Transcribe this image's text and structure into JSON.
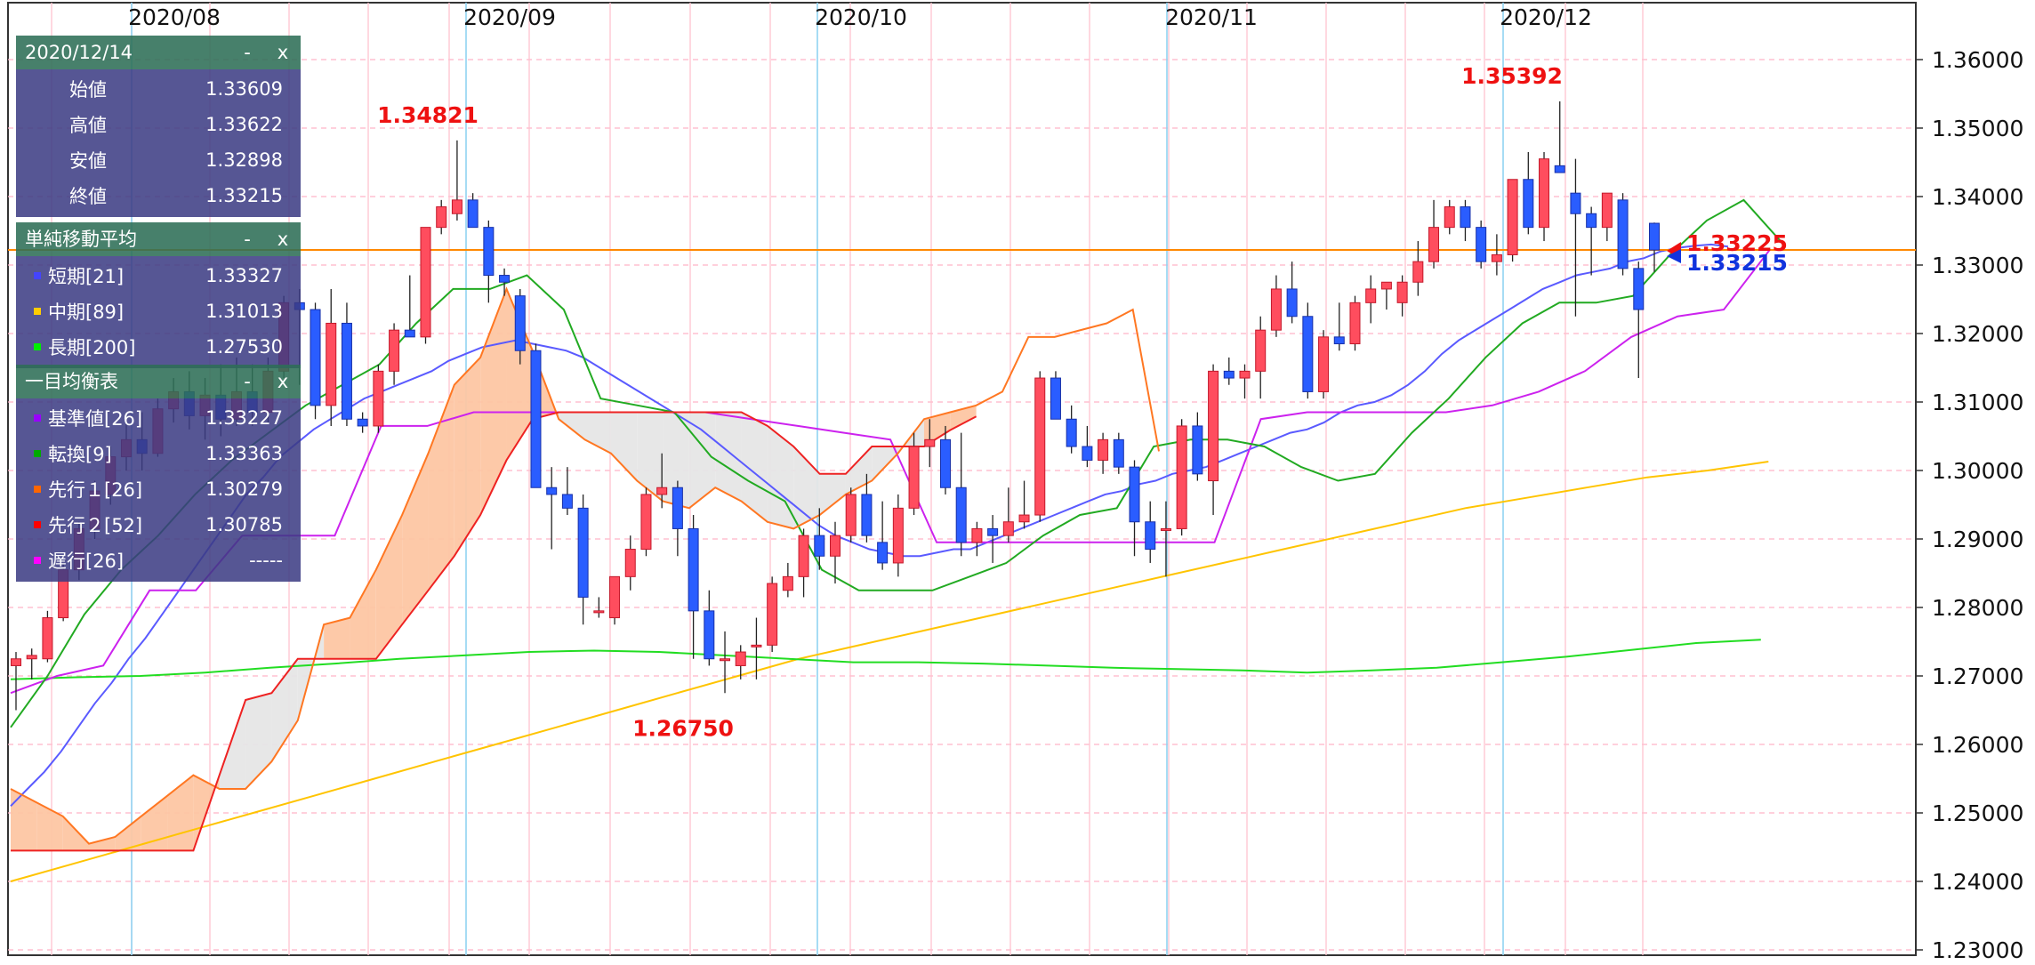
{
  "ohlc_panel": {
    "date": "2020/12/14",
    "minimize": "-",
    "close": "x",
    "rows": [
      {
        "label": "始値",
        "value": "1.33609"
      },
      {
        "label": "高値",
        "value": "1.33622"
      },
      {
        "label": "安値",
        "value": "1.32898"
      },
      {
        "label": "終値",
        "value": "1.33215"
      }
    ]
  },
  "sma_panel": {
    "title": "単純移動平均",
    "minimize": "-",
    "close": "x",
    "rows": [
      {
        "label": "短期[21]",
        "value": "1.33327",
        "color": "#4444ff"
      },
      {
        "label": "中期[89]",
        "value": "1.31013",
        "color": "#ffcc00"
      },
      {
        "label": "長期[200]",
        "value": "1.27530",
        "color": "#00ee00"
      }
    ]
  },
  "ichimoku_panel": {
    "title": "一目均衡表",
    "minimize": "-",
    "close": "x",
    "rows": [
      {
        "label": "基準値[26]",
        "value": "1.33227",
        "color": "#9900ff"
      },
      {
        "label": "転換[9]",
        "value": "1.33363",
        "color": "#00aa00"
      },
      {
        "label": "先行１[26]",
        "value": "1.30279",
        "color": "#ff6600"
      },
      {
        "label": "先行２[52]",
        "value": "1.30785",
        "color": "#ff0000"
      },
      {
        "label": "遅行[26]",
        "value": "-----",
        "color": "#ff00ff"
      }
    ]
  },
  "chart_data": {
    "type": "candlestick",
    "instrument_price_scale": {
      "ylim": [
        1.23,
        1.365
      ]
    },
    "y_ticks": [
      "1.23000",
      "1.24000",
      "1.25000",
      "1.26000",
      "1.27000",
      "1.28000",
      "1.29000",
      "1.30000",
      "1.31000",
      "1.32000",
      "1.33000",
      "1.34000",
      "1.35000",
      "1.36000"
    ],
    "month_labels": [
      "2020/08",
      "2020/09",
      "2020/10",
      "2020/11",
      "2020/12"
    ],
    "annotations": [
      {
        "text": "1.34821",
        "value": 1.34821
      },
      {
        "text": "1.35392",
        "value": 1.35392
      },
      {
        "text": "1.26750",
        "value": 1.2675
      }
    ],
    "current_price_labels": [
      {
        "text": "1.33225",
        "value": 1.33225,
        "color": "#ee1111"
      },
      {
        "text": "1.33215",
        "value": 1.33215,
        "color": "#1133dd"
      }
    ],
    "horizontal_line": {
      "value": 1.3322,
      "color": "#ff8800"
    },
    "candles": [
      [
        1.2715,
        1.2735,
        1.265,
        1.2725
      ],
      [
        1.2725,
        1.274,
        1.2695,
        1.273
      ],
      [
        1.2725,
        1.2795,
        1.272,
        1.2785
      ],
      [
        1.2785,
        1.2865,
        1.278,
        1.2855
      ],
      [
        1.2855,
        1.2925,
        1.284,
        1.2915
      ],
      [
        1.2915,
        1.2985,
        1.29,
        1.297
      ],
      [
        1.2965,
        1.3035,
        1.295,
        1.302
      ],
      [
        1.302,
        1.3075,
        1.3,
        1.3045
      ],
      [
        1.3045,
        1.3085,
        1.3,
        1.3025
      ],
      [
        1.3025,
        1.3105,
        1.302,
        1.309
      ],
      [
        1.309,
        1.3135,
        1.307,
        1.3115
      ],
      [
        1.3115,
        1.3145,
        1.306,
        1.308
      ],
      [
        1.308,
        1.3135,
        1.3045,
        1.311
      ],
      [
        1.311,
        1.3155,
        1.305,
        1.3075
      ],
      [
        1.3075,
        1.3165,
        1.3065,
        1.3115
      ],
      [
        1.3115,
        1.3155,
        1.3065,
        1.3085
      ],
      [
        1.3085,
        1.3165,
        1.307,
        1.3145
      ],
      [
        1.3145,
        1.3255,
        1.3135,
        1.3245
      ],
      [
        1.3245,
        1.3265,
        1.3125,
        1.3235
      ],
      [
        1.3235,
        1.3245,
        1.3075,
        1.3095
      ],
      [
        1.3095,
        1.3265,
        1.3065,
        1.3215
      ],
      [
        1.3215,
        1.3245,
        1.3065,
        1.3075
      ],
      [
        1.3075,
        1.3085,
        1.3055,
        1.3065
      ],
      [
        1.3065,
        1.3155,
        1.3055,
        1.3145
      ],
      [
        1.3145,
        1.3215,
        1.3125,
        1.3205
      ],
      [
        1.3205,
        1.3285,
        1.3195,
        1.3195
      ],
      [
        1.3195,
        1.3355,
        1.3185,
        1.3355
      ],
      [
        1.3355,
        1.3395,
        1.3345,
        1.3385
      ],
      [
        1.3375,
        1.3482,
        1.3365,
        1.3395
      ],
      [
        1.3395,
        1.3405,
        1.3355,
        1.3355
      ],
      [
        1.3355,
        1.3365,
        1.3245,
        1.3285
      ],
      [
        1.3285,
        1.3295,
        1.3255,
        1.3275
      ],
      [
        1.3255,
        1.3265,
        1.3155,
        1.3175
      ],
      [
        1.3175,
        1.3185,
        1.2975,
        1.2975
      ],
      [
        1.2975,
        1.3005,
        1.2885,
        1.2965
      ],
      [
        1.2965,
        1.3005,
        1.2935,
        1.2945
      ],
      [
        1.2945,
        1.2965,
        1.2775,
        1.2815
      ],
      [
        1.2795,
        1.2815,
        1.2785,
        1.2795
      ],
      [
        1.2785,
        1.2845,
        1.2775,
        1.2845
      ],
      [
        1.2845,
        1.2905,
        1.2825,
        1.2885
      ],
      [
        1.2885,
        1.2975,
        1.2875,
        1.2965
      ],
      [
        1.2965,
        1.3025,
        1.2945,
        1.2975
      ],
      [
        1.2975,
        1.2985,
        1.2875,
        1.2915
      ],
      [
        1.2915,
        1.2935,
        1.2725,
        1.2795
      ],
      [
        1.2795,
        1.2825,
        1.2715,
        1.2725
      ],
      [
        1.2725,
        1.2765,
        1.2675,
        1.2725
      ],
      [
        1.2715,
        1.2745,
        1.2695,
        1.2735
      ],
      [
        1.2745,
        1.2785,
        1.2695,
        1.2745
      ],
      [
        1.2745,
        1.2845,
        1.2735,
        1.2835
      ],
      [
        1.2825,
        1.2865,
        1.2815,
        1.2845
      ],
      [
        1.2845,
        1.2915,
        1.2815,
        1.2905
      ],
      [
        1.2905,
        1.2945,
        1.2855,
        1.2875
      ],
      [
        1.2875,
        1.2925,
        1.2835,
        1.2905
      ],
      [
        1.2905,
        1.2975,
        1.2895,
        1.2965
      ],
      [
        1.2965,
        1.2995,
        1.2895,
        1.2905
      ],
      [
        1.2895,
        1.2955,
        1.2855,
        1.2865
      ],
      [
        1.2865,
        1.2965,
        1.2845,
        1.2945
      ],
      [
        1.2945,
        1.3055,
        1.2935,
        1.3035
      ],
      [
        1.3035,
        1.3075,
        1.3005,
        1.3045
      ],
      [
        1.3045,
        1.3065,
        1.2965,
        1.2975
      ],
      [
        1.2975,
        1.3055,
        1.2875,
        1.2895
      ],
      [
        1.2895,
        1.2925,
        1.2875,
        1.2915
      ],
      [
        1.2915,
        1.2935,
        1.2865,
        1.2905
      ],
      [
        1.2905,
        1.2975,
        1.2895,
        1.2925
      ],
      [
        1.2925,
        1.2985,
        1.2915,
        1.2935
      ],
      [
        1.2935,
        1.3145,
        1.2925,
        1.3135
      ],
      [
        1.3135,
        1.3145,
        1.3075,
        1.3075
      ],
      [
        1.3075,
        1.3095,
        1.3025,
        1.3035
      ],
      [
        1.3035,
        1.3065,
        1.3005,
        1.3015
      ],
      [
        1.3015,
        1.3055,
        1.2995,
        1.3045
      ],
      [
        1.3045,
        1.3055,
        1.2995,
        1.3005
      ],
      [
        1.3005,
        1.3015,
        1.2875,
        1.2925
      ],
      [
        1.2925,
        1.2955,
        1.2865,
        1.2885
      ],
      [
        1.2915,
        1.2955,
        1.2845,
        1.2915
      ],
      [
        1.2915,
        1.3075,
        1.2905,
        1.3065
      ],
      [
        1.3065,
        1.3085,
        1.2985,
        1.2995
      ],
      [
        1.2985,
        1.3155,
        1.2935,
        1.3145
      ],
      [
        1.3145,
        1.3165,
        1.3125,
        1.3135
      ],
      [
        1.3135,
        1.3155,
        1.3105,
        1.3145
      ],
      [
        1.3145,
        1.3225,
        1.3105,
        1.3205
      ],
      [
        1.3205,
        1.3285,
        1.3195,
        1.3265
      ],
      [
        1.3265,
        1.3305,
        1.3215,
        1.3225
      ],
      [
        1.3225,
        1.3245,
        1.3105,
        1.3115
      ],
      [
        1.3115,
        1.3205,
        1.3105,
        1.3195
      ],
      [
        1.3195,
        1.3245,
        1.3175,
        1.3185
      ],
      [
        1.3185,
        1.3255,
        1.3175,
        1.3245
      ],
      [
        1.3245,
        1.3285,
        1.3215,
        1.3265
      ],
      [
        1.3265,
        1.3275,
        1.3235,
        1.3275
      ],
      [
        1.3245,
        1.3285,
        1.3225,
        1.3275
      ],
      [
        1.3275,
        1.3335,
        1.3255,
        1.3305
      ],
      [
        1.3305,
        1.3395,
        1.3295,
        1.3355
      ],
      [
        1.3355,
        1.3395,
        1.3345,
        1.3385
      ],
      [
        1.3385,
        1.3395,
        1.3335,
        1.3355
      ],
      [
        1.3355,
        1.3365,
        1.3295,
        1.3305
      ],
      [
        1.3305,
        1.3345,
        1.3285,
        1.3315
      ],
      [
        1.3315,
        1.3425,
        1.3305,
        1.3425
      ],
      [
        1.3425,
        1.3465,
        1.3345,
        1.3355
      ],
      [
        1.3355,
        1.3465,
        1.3335,
        1.3455
      ],
      [
        1.3445,
        1.3539,
        1.3435,
        1.3435
      ],
      [
        1.3405,
        1.3455,
        1.3225,
        1.3375
      ],
      [
        1.3375,
        1.3385,
        1.3285,
        1.3355
      ],
      [
        1.3355,
        1.3405,
        1.3335,
        1.3405
      ],
      [
        1.3395,
        1.3405,
        1.3285,
        1.3295
      ],
      [
        1.3295,
        1.3305,
        1.3135,
        1.3235
      ],
      [
        1.3361,
        1.3362,
        1.329,
        1.3322
      ]
    ],
    "series": [
      {
        "name": "短期[21]",
        "color": "#5a5aff",
        "values": [
          1.251,
          1.2535,
          1.256,
          1.259,
          1.2625,
          1.266,
          1.269,
          1.2725,
          1.2755,
          1.279,
          1.2825,
          1.286,
          1.2895,
          1.293,
          1.2965,
          1.299,
          1.302,
          1.304,
          1.306,
          1.3075,
          1.309,
          1.3105,
          1.3115,
          1.3125,
          1.3135,
          1.3145,
          1.316,
          1.317,
          1.318,
          1.3185,
          1.319,
          1.3185,
          1.318,
          1.3175,
          1.3165,
          1.315,
          1.3135,
          1.312,
          1.3105,
          1.309,
          1.3075,
          1.306,
          1.304,
          1.302,
          1.3,
          1.298,
          1.296,
          1.294,
          1.292,
          1.2905,
          1.2895,
          1.2885,
          1.288,
          1.2875,
          1.2875,
          1.288,
          1.2885,
          1.2885,
          1.2895,
          1.2905,
          1.2915,
          1.2925,
          1.2935,
          1.2945,
          1.2955,
          1.2965,
          1.297,
          1.298,
          1.2985,
          1.2995,
          1.3,
          1.3005,
          1.3015,
          1.3025,
          1.3035,
          1.3045,
          1.3055,
          1.306,
          1.307,
          1.3085,
          1.3095,
          1.31,
          1.311,
          1.3125,
          1.3145,
          1.317,
          1.319,
          1.3205,
          1.322,
          1.3235,
          1.325,
          1.3265,
          1.3275,
          1.3285,
          1.329,
          1.3295,
          1.3305,
          1.331,
          1.332,
          1.3325,
          1.3328,
          1.333,
          1.3327
        ]
      },
      {
        "name": "中期[89]",
        "color": "#ffc400",
        "values": [
          1.24,
          1.2425,
          1.245,
          1.2475,
          1.25,
          1.2525,
          1.255,
          1.2575,
          1.26,
          1.2625,
          1.265,
          1.2675,
          1.27,
          1.2725,
          1.2745,
          1.2765,
          1.2785,
          1.2805,
          1.2825,
          1.2845,
          1.2865,
          1.2885,
          1.2905,
          1.2925,
          1.2945,
          1.296,
          1.2975,
          1.299,
          1.3,
          1.3013
        ]
      },
      {
        "name": "長期[200]",
        "color": "#22dd22",
        "values": [
          1.2695,
          1.2698,
          1.27,
          1.2705,
          1.2712,
          1.2718,
          1.2725,
          1.273,
          1.2735,
          1.2737,
          1.2735,
          1.273,
          1.2725,
          1.272,
          1.272,
          1.2718,
          1.2715,
          1.2712,
          1.271,
          1.2708,
          1.2705,
          1.2708,
          1.2712,
          1.272,
          1.2728,
          1.2738,
          1.2748,
          1.2753
        ]
      },
      {
        "name": "基準値[26]",
        "color": "#cc22ee",
        "values": [
          1.2675,
          1.27,
          1.2715,
          1.2825,
          1.2825,
          1.2905,
          1.2905,
          1.2905,
          1.3065,
          1.3065,
          1.3085,
          1.3085,
          1.3085,
          1.3085,
          1.3085,
          1.3085,
          1.3075,
          1.3065,
          1.3055,
          1.3045,
          1.2895,
          1.2895,
          1.2895,
          1.2895,
          1.2895,
          1.2895,
          1.2895,
          1.3075,
          1.3085,
          1.3085,
          1.3085,
          1.3085,
          1.3095,
          1.3115,
          1.3145,
          1.3195,
          1.3225,
          1.3235,
          1.3323
        ]
      },
      {
        "name": "転換[9]",
        "color": "#22aa22",
        "values": [
          1.2625,
          1.27,
          1.279,
          1.2855,
          1.2905,
          1.2965,
          1.3015,
          1.3055,
          1.3095,
          1.3125,
          1.3155,
          1.3215,
          1.3265,
          1.3265,
          1.3285,
          1.3235,
          1.3105,
          1.3095,
          1.3085,
          1.302,
          1.2985,
          1.2955,
          1.2855,
          1.2825,
          1.2825,
          1.2825,
          1.2845,
          1.2865,
          1.2905,
          1.2935,
          1.2945,
          1.3035,
          1.3045,
          1.3045,
          1.3035,
          1.3005,
          1.2985,
          1.2995,
          1.3055,
          1.3105,
          1.3165,
          1.3215,
          1.3245,
          1.3245,
          1.3255,
          1.3315,
          1.3365,
          1.3395,
          1.3335
        ]
      },
      {
        "name": "先行１[26]",
        "color": "#ff7722",
        "values": [
          1.2535,
          1.2515,
          1.2495,
          1.2455,
          1.2465,
          1.2495,
          1.2525,
          1.2555,
          1.2535,
          1.2535,
          1.2575,
          1.2635,
          1.2775,
          1.2785,
          1.2855,
          1.2935,
          1.3025,
          1.3125,
          1.3165,
          1.3265,
          1.3175,
          1.3075,
          1.3045,
          1.3025,
          1.2985,
          1.2955,
          1.2945,
          1.2975,
          1.2955,
          1.2925,
          1.2915,
          1.2935,
          1.2965,
          1.2985,
          1.3025,
          1.3075,
          1.3085,
          1.3095,
          1.3115,
          1.3195,
          1.3195,
          1.3205,
          1.3215,
          1.3235,
          1.3028
        ]
      },
      {
        "name": "先行２[52]",
        "color": "#ee2222",
        "values": [
          1.2445,
          1.2445,
          1.2445,
          1.2445,
          1.2445,
          1.2445,
          1.2445,
          1.2445,
          1.2555,
          1.2665,
          1.2675,
          1.2725,
          1.2725,
          1.2725,
          1.2725,
          1.2775,
          1.2825,
          1.2875,
          1.2935,
          1.3015,
          1.3075,
          1.3085,
          1.3085,
          1.3085,
          1.3085,
          1.3085,
          1.3085,
          1.3085,
          1.3085,
          1.3065,
          1.3035,
          1.2995,
          1.2995,
          1.3035,
          1.3035,
          1.3035,
          1.3059,
          1.3079
        ]
      }
    ]
  }
}
